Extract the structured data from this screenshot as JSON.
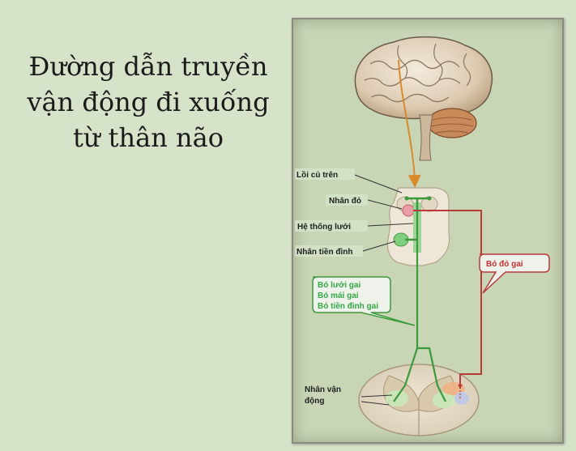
{
  "title": {
    "line1": "Đường dẫn truyền",
    "line2": "vận động đi xuống",
    "line3": "từ thân não"
  },
  "diagram": {
    "labels": {
      "superior_colliculus": "Lồi củ trên",
      "red_nucleus": "Nhân đỏ",
      "reticular_formation": "Hệ thống lưới",
      "vestibular_nucleus": "Nhân tiền đình",
      "motor_nucleus_line1": "Nhân vận",
      "motor_nucleus_line2": "động"
    },
    "green_callout": {
      "line1": "Bó lưới gai",
      "line2": "Bó mái gai",
      "line3": "Bó tiền đình gai"
    },
    "red_callout": "Bó đỏ gai",
    "colors": {
      "green_tract": "#3c9a3c",
      "red_tract": "#b83a3a",
      "cortical_tract": "#d98a2b",
      "brain": "#e8dcc8"
    }
  }
}
